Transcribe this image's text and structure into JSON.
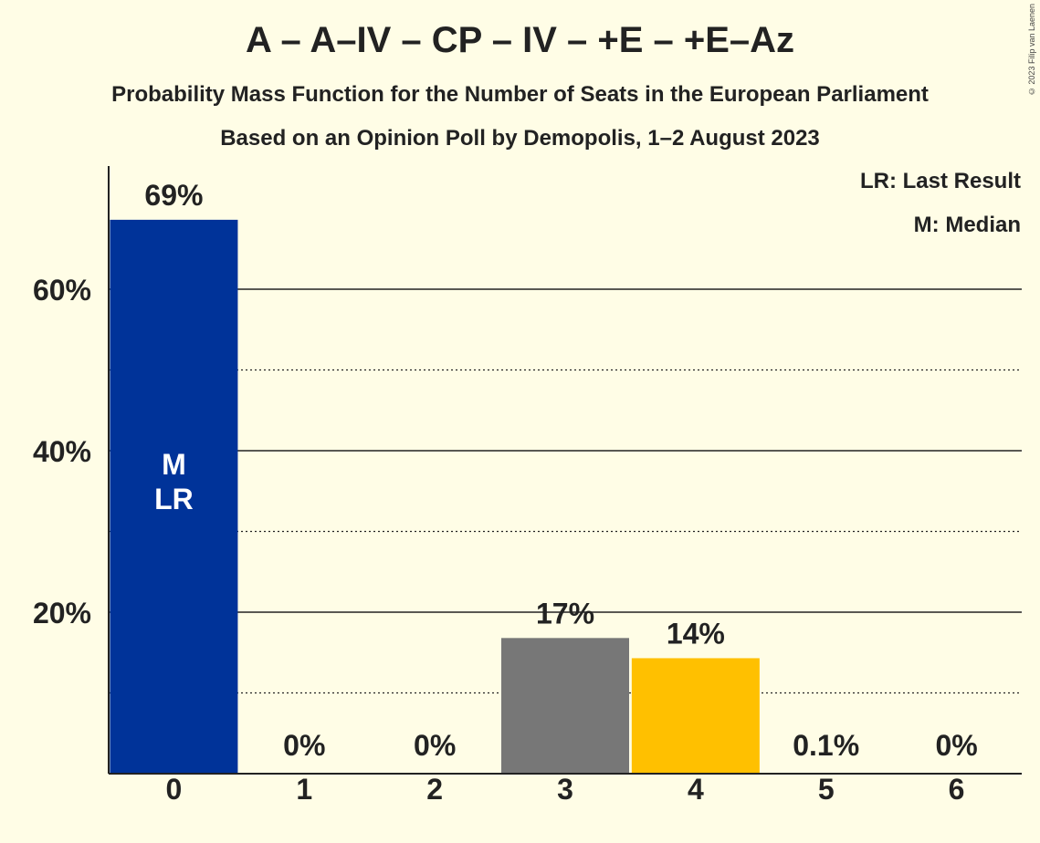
{
  "chart_data": {
    "type": "bar",
    "title": "A – A–IV – CP – IV – +E – +E–Az",
    "subtitle": "Probability Mass Function for the Number of Seats in the European Parliament",
    "subtitle2": "Based on an Opinion Poll by Demopolis, 1–2 August 2023",
    "copyright": "© 2023 Filip van Laenen",
    "legend": [
      "LR: Last Result",
      "M: Median"
    ],
    "legend_position": "top-right",
    "categories": [
      "0",
      "1",
      "2",
      "3",
      "4",
      "5",
      "6"
    ],
    "values": [
      68.6,
      0,
      0,
      16.8,
      14.3,
      0.1,
      0
    ],
    "value_labels": [
      "69%",
      "0%",
      "0%",
      "17%",
      "14%",
      "0.1%",
      "0%"
    ],
    "bar_colors": [
      "#003399",
      "#888888",
      "#888888",
      "#777777",
      "#ffc000",
      "#888888",
      "#888888"
    ],
    "median_category": "0",
    "last_result_category": "0",
    "bar_markers": [
      "M",
      "LR"
    ],
    "yticks": [
      20,
      40,
      60
    ],
    "ytick_labels": [
      "20%",
      "40%",
      "60%"
    ],
    "minor_gridlines": [
      10,
      30,
      50
    ],
    "ylim": [
      0,
      75
    ],
    "xlabel": "",
    "ylabel": ""
  }
}
